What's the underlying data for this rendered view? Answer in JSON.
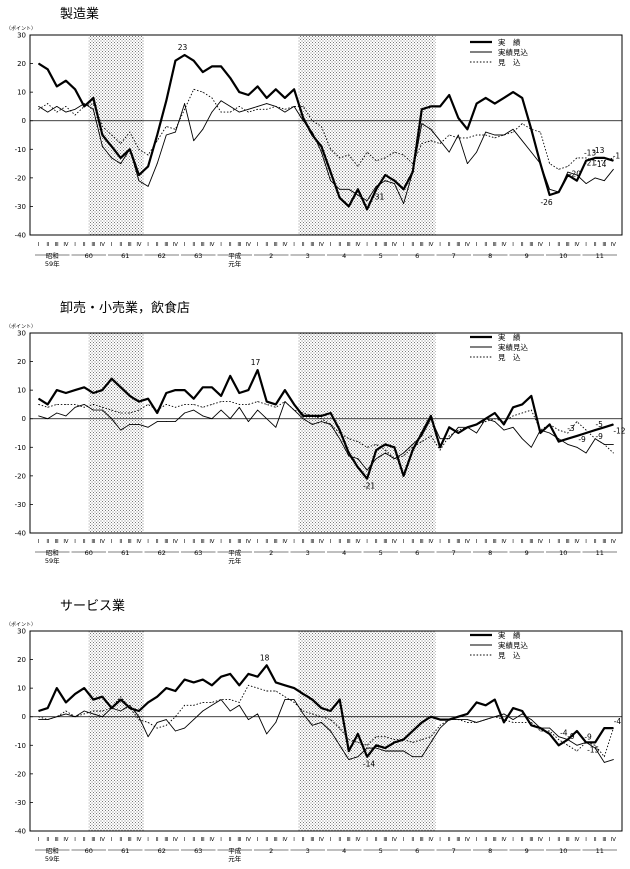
{
  "chart_data": [
    {
      "type": "line",
      "title": "製造業",
      "ylabel": "（ポイント）",
      "ylim": [
        -40,
        30
      ],
      "yticks": [
        30,
        20,
        10,
        0,
        -10,
        -20,
        -30,
        -40
      ],
      "quarters_per_year": [
        "Ⅰ",
        "Ⅱ",
        "Ⅲ",
        "Ⅳ"
      ],
      "year_labels": [
        "昭和\n59年",
        "60",
        "61",
        "62",
        "63",
        "平成\n元年",
        "2",
        "3",
        "4",
        "5",
        "6",
        "7",
        "8",
        "9",
        "10",
        "11"
      ],
      "recession_bands": [
        [
          "60年Ⅲ",
          "61年Ⅳ"
        ],
        [
          "3年Ⅱ",
          "5年Ⅳ"
        ]
      ],
      "legend": {
        "position": "top-right",
        "items": [
          "実　績",
          "実績見込",
          "見　込"
        ]
      },
      "annotations": [
        {
          "text": "23",
          "at": "62年Ⅲ"
        },
        {
          "text": "-31",
          "at": "4年Ⅳ"
        },
        {
          "text": "-26",
          "at": "10年Ⅰ"
        },
        {
          "text": "-13",
          "at": "10年Ⅳ"
        },
        {
          "text": "-13",
          "at": "11年Ⅰ"
        },
        {
          "text": "-20",
          "at": "10年Ⅲ"
        },
        {
          "text": "-21",
          "at": "10年Ⅳ"
        },
        {
          "text": "-14",
          "at": "11年Ⅱ"
        },
        {
          "text": "-1",
          "at": "11年Ⅲ"
        }
      ],
      "series": [
        {
          "name": "実　績",
          "style": "solid-bold",
          "values": [
            20,
            18,
            12,
            14,
            11,
            5,
            8,
            -5,
            -9,
            -13,
            -10,
            -19,
            -16,
            -5,
            7,
            21,
            23,
            21,
            17,
            19,
            19,
            15,
            10,
            9,
            12,
            8,
            11,
            8,
            11,
            1,
            -5,
            -9,
            -18,
            -27,
            -30,
            -24,
            -31,
            -24,
            -19,
            -21,
            -24,
            -18,
            4,
            5,
            5,
            9,
            1,
            -3,
            6,
            8,
            6,
            8,
            10,
            8,
            -3,
            -15,
            -26,
            -25,
            -19,
            -21,
            -14,
            -13,
            -13,
            -14
          ]
        },
        {
          "name": "実績見込",
          "style": "solid-thin",
          "values": [
            5,
            3,
            5,
            3,
            4,
            6,
            4,
            -9,
            -13,
            -15,
            -10,
            -21,
            -23,
            -15,
            -5,
            -4,
            6,
            -7,
            -3,
            3,
            7,
            5,
            3,
            4,
            5,
            6,
            5,
            3,
            5,
            0,
            -4,
            -11,
            -21,
            -24,
            -24,
            -26,
            -28,
            -23,
            -21,
            -22,
            -29,
            -18,
            -1,
            -3,
            -7,
            -11,
            -5,
            -15,
            -11,
            -4,
            -5,
            -5,
            -3,
            -7,
            -11,
            -15,
            -24,
            -25,
            -18,
            -19,
            -22,
            -20,
            -21,
            -17
          ]
        },
        {
          "name": "見　込",
          "style": "dotted",
          "values": [
            4,
            6,
            3,
            5,
            2,
            5,
            6,
            -2,
            -5,
            -8,
            -4,
            -10,
            -12,
            -7,
            -2,
            -3,
            4,
            11,
            10,
            8,
            3,
            3,
            5,
            3,
            4,
            4,
            5,
            4,
            5,
            5,
            0,
            -2,
            -10,
            -13,
            -12,
            -16,
            -11,
            -14,
            -13,
            -11,
            -12,
            -15,
            -8,
            -7,
            -8,
            -5,
            -6,
            -6,
            -5,
            -5,
            -6,
            -5,
            -4,
            -1,
            -3,
            -4,
            -15,
            -17,
            -16,
            -13,
            -13,
            -14,
            -14,
            -13
          ]
        }
      ]
    },
    {
      "type": "line",
      "title": "卸売・小売業，飲食店",
      "ylabel": "（ポイント）",
      "ylim": [
        -40,
        30
      ],
      "yticks": [
        30,
        20,
        10,
        0,
        -10,
        -20,
        -30,
        -40
      ],
      "quarters_per_year": [
        "Ⅰ",
        "Ⅱ",
        "Ⅲ",
        "Ⅳ"
      ],
      "year_labels": [
        "昭和\n59年",
        "60",
        "61",
        "62",
        "63",
        "平成\n元年",
        "2",
        "3",
        "4",
        "5",
        "6",
        "7",
        "8",
        "9",
        "10",
        "11"
      ],
      "recession_bands": [
        [
          "60年Ⅲ",
          "61年Ⅳ"
        ],
        [
          "3年Ⅱ",
          "5年Ⅳ"
        ]
      ],
      "legend": {
        "position": "top-right",
        "items": [
          "実　績",
          "実績見込",
          "見　込"
        ]
      },
      "annotations": [
        {
          "text": "17",
          "at": "元年Ⅲ"
        },
        {
          "text": "-21",
          "at": "4年Ⅳ"
        },
        {
          "text": "-3",
          "at": "10年Ⅳ"
        },
        {
          "text": "-5",
          "at": "11年Ⅱ"
        },
        {
          "text": "-9",
          "at": "11年Ⅰ"
        },
        {
          "text": "-9",
          "at": "11年Ⅱ"
        },
        {
          "text": "-12",
          "at": "11年Ⅲ"
        }
      ],
      "series": [
        {
          "name": "実　績",
          "style": "solid-bold",
          "values": [
            7,
            5,
            10,
            9,
            10,
            11,
            9,
            10,
            14,
            11,
            8,
            6,
            7,
            2,
            9,
            10,
            10,
            7,
            11,
            11,
            8,
            15,
            9,
            10,
            17,
            6,
            5,
            10,
            5,
            1,
            1,
            1,
            2,
            -4,
            -12,
            -17,
            -21,
            -11,
            -9,
            -10,
            -20,
            -11,
            -5,
            1,
            -10,
            -3,
            -5,
            -3,
            -2,
            0,
            2,
            -2,
            4,
            5,
            8,
            -5,
            -2,
            -8,
            -7,
            -6,
            -5,
            -4,
            -3,
            -2
          ]
        },
        {
          "name": "実績見込",
          "style": "solid-thin",
          "values": [
            1,
            0,
            2,
            1,
            4,
            5,
            3,
            3,
            0,
            -4,
            -2,
            -2,
            -3,
            -1,
            -1,
            -1,
            2,
            3,
            1,
            0,
            3,
            0,
            4,
            -1,
            3,
            0,
            -3,
            6,
            3,
            0,
            -2,
            -1,
            -2,
            -7,
            -13,
            -14,
            -18,
            -14,
            -12,
            -14,
            -12,
            -9,
            -6,
            0,
            -7,
            -7,
            -3,
            -3,
            -5,
            0,
            -1,
            -4,
            -3,
            -7,
            -10,
            -4,
            -5,
            -7,
            -9,
            -10,
            -12,
            -7,
            -9,
            -9
          ]
        },
        {
          "name": "見　込",
          "style": "dotted",
          "values": [
            5,
            4,
            5,
            5,
            5,
            4,
            5,
            4,
            3,
            2,
            2,
            3,
            5,
            3,
            5,
            4,
            5,
            5,
            4,
            5,
            6,
            6,
            5,
            5,
            6,
            5,
            4,
            6,
            3,
            2,
            1,
            0,
            -2,
            -5,
            -7,
            -8,
            -10,
            -9,
            -11,
            -14,
            -13,
            -10,
            -8,
            -6,
            -11,
            -6,
            -4,
            -3,
            -2,
            -1,
            0,
            -1,
            1,
            2,
            3,
            -4,
            -2,
            -4,
            -5,
            -1,
            -4,
            -7,
            -9,
            -12
          ]
        }
      ]
    },
    {
      "type": "line",
      "title": "サービス業",
      "ylabel": "（ポイント）",
      "ylim": [
        -40,
        30
      ],
      "yticks": [
        30,
        20,
        10,
        0,
        -10,
        -20,
        -30,
        -40
      ],
      "quarters_per_year": [
        "Ⅰ",
        "Ⅱ",
        "Ⅲ",
        "Ⅳ"
      ],
      "year_labels": [
        "昭和\n59年",
        "60",
        "61",
        "62",
        "63",
        "平成\n元年",
        "2",
        "3",
        "4",
        "5",
        "6",
        "7",
        "8",
        "9",
        "10",
        "11"
      ],
      "recession_bands": [
        [
          "60年Ⅲ",
          "61年Ⅳ"
        ],
        [
          "3年Ⅱ",
          "5年Ⅳ"
        ]
      ],
      "legend": {
        "position": "top-right",
        "items": [
          "実　績",
          "実績見込",
          "見　込"
        ]
      },
      "annotations": [
        {
          "text": "18",
          "at": "元年Ⅳ"
        },
        {
          "text": "-14",
          "at": "4年Ⅳ"
        },
        {
          "text": "-4",
          "at": "10年Ⅲ"
        },
        {
          "text": "-9",
          "at": "10年Ⅳ"
        },
        {
          "text": "-9",
          "at": "11年Ⅰ"
        },
        {
          "text": "-15",
          "at": "11年Ⅱ"
        },
        {
          "text": "-4",
          "at": "11年Ⅲ"
        }
      ],
      "series": [
        {
          "name": "実　績",
          "style": "solid-bold",
          "values": [
            2,
            3,
            10,
            5,
            8,
            10,
            6,
            7,
            3,
            6,
            3,
            2,
            5,
            7,
            10,
            9,
            13,
            12,
            13,
            11,
            14,
            15,
            11,
            15,
            14,
            18,
            12,
            11,
            10,
            8,
            6,
            3,
            2,
            6,
            -12,
            -6,
            -14,
            -10,
            -11,
            -9,
            -8,
            -5,
            -2,
            0,
            -1,
            -1,
            0,
            1,
            5,
            4,
            6,
            -2,
            3,
            2,
            -3,
            -4,
            -6,
            -10,
            -8,
            -5,
            -9,
            -9,
            -4,
            -4
          ]
        },
        {
          "name": "実績見込",
          "style": "solid-thin",
          "values": [
            -1,
            -1,
            0,
            1,
            0,
            2,
            1,
            0,
            3,
            2,
            4,
            0,
            -7,
            -2,
            -1,
            -5,
            -4,
            -1,
            2,
            4,
            6,
            2,
            4,
            -1,
            1,
            -6,
            -2,
            6,
            6,
            1,
            -3,
            -2,
            -5,
            -10,
            -15,
            -14,
            -11,
            -11,
            -12,
            -12,
            -12,
            -14,
            -14,
            -9,
            -4,
            -1,
            -1,
            -1,
            -2,
            -1,
            0,
            1,
            -1,
            1,
            -1,
            -4,
            -4,
            -7,
            -8,
            -10,
            -9,
            -11,
            -16,
            -15
          ]
        },
        {
          "name": "見　込",
          "style": "dotted",
          "values": [
            0,
            -1,
            0,
            2,
            0,
            1,
            2,
            2,
            3,
            7,
            3,
            -1,
            -2,
            -4,
            -3,
            0,
            4,
            4,
            5,
            5,
            6,
            6,
            5,
            11,
            10,
            9,
            9,
            7,
            5,
            2,
            1,
            0,
            -1,
            -4,
            -8,
            -9,
            -10,
            -7,
            -7,
            -8,
            -8,
            -9,
            -8,
            -7,
            -3,
            -1,
            -1,
            -2,
            -2,
            -1,
            0,
            -1,
            -2,
            -2,
            -2,
            -5,
            -5,
            -8,
            -10,
            -12,
            -9,
            -10,
            -14,
            -4
          ]
        }
      ]
    }
  ]
}
